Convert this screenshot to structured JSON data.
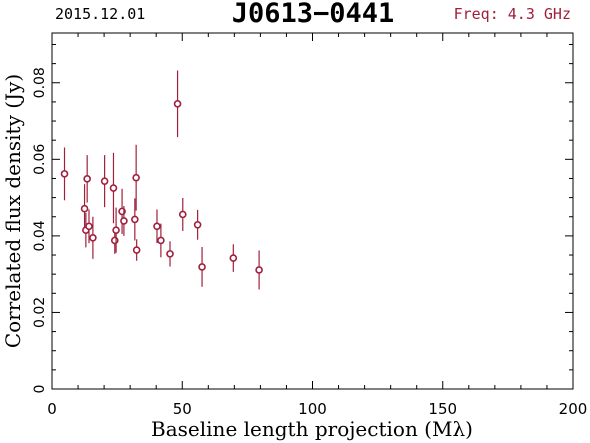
{
  "header": {
    "date": "2015.12.01",
    "source": "J0613−0441",
    "freq": "Freq: 4.3 GHz"
  },
  "colors": {
    "data": "#a0203c",
    "axis": "#000000",
    "background": "#ffffff"
  },
  "chart_data": {
    "type": "scatter",
    "title": "J0613−0441",
    "xlabel": "Baseline length projection (Mλ)",
    "ylabel": "Correlated flux density (Jy)",
    "xlim": [
      0,
      200
    ],
    "ylim": [
      0,
      0.093
    ],
    "xticks": [
      0,
      50,
      100,
      150,
      200
    ],
    "yticks": [
      0,
      0.02,
      0.04,
      0.06,
      0.08
    ],
    "xtick_labels": [
      "0",
      "50",
      "100",
      "150",
      "200"
    ],
    "ytick_labels": [
      "0",
      "0.02",
      "0.04",
      "0.06",
      "0.08"
    ],
    "grid": false,
    "points": [
      {
        "x": 4.8,
        "y": 0.0562,
        "err": 0.0069
      },
      {
        "x": 12.5,
        "y": 0.0471,
        "err": 0.0064
      },
      {
        "x": 13.0,
        "y": 0.0415,
        "err": 0.0045
      },
      {
        "x": 13.5,
        "y": 0.0549,
        "err": 0.0062
      },
      {
        "x": 14.2,
        "y": 0.0425,
        "err": 0.0044
      },
      {
        "x": 15.7,
        "y": 0.0395,
        "err": 0.0055
      },
      {
        "x": 20.2,
        "y": 0.0543,
        "err": 0.0068
      },
      {
        "x": 23.6,
        "y": 0.0525,
        "err": 0.0092
      },
      {
        "x": 24.1,
        "y": 0.0388,
        "err": 0.0035
      },
      {
        "x": 24.6,
        "y": 0.0415,
        "err": 0.0059
      },
      {
        "x": 26.9,
        "y": 0.0464,
        "err": 0.0059
      },
      {
        "x": 27.6,
        "y": 0.0439,
        "err": 0.0039
      },
      {
        "x": 31.8,
        "y": 0.0443,
        "err": 0.0055
      },
      {
        "x": 32.3,
        "y": 0.0552,
        "err": 0.0086
      },
      {
        "x": 32.5,
        "y": 0.0363,
        "err": 0.0028
      },
      {
        "x": 40.3,
        "y": 0.0425,
        "err": 0.0044
      },
      {
        "x": 41.8,
        "y": 0.0388,
        "err": 0.0044
      },
      {
        "x": 45.3,
        "y": 0.0353,
        "err": 0.0033
      },
      {
        "x": 48.2,
        "y": 0.0745,
        "err": 0.0087
      },
      {
        "x": 50.2,
        "y": 0.0456,
        "err": 0.0043
      },
      {
        "x": 55.9,
        "y": 0.0429,
        "err": 0.0039
      },
      {
        "x": 57.6,
        "y": 0.0319,
        "err": 0.0052
      },
      {
        "x": 69.6,
        "y": 0.0342,
        "err": 0.0036
      },
      {
        "x": 79.5,
        "y": 0.0311,
        "err": 0.0051
      }
    ]
  }
}
